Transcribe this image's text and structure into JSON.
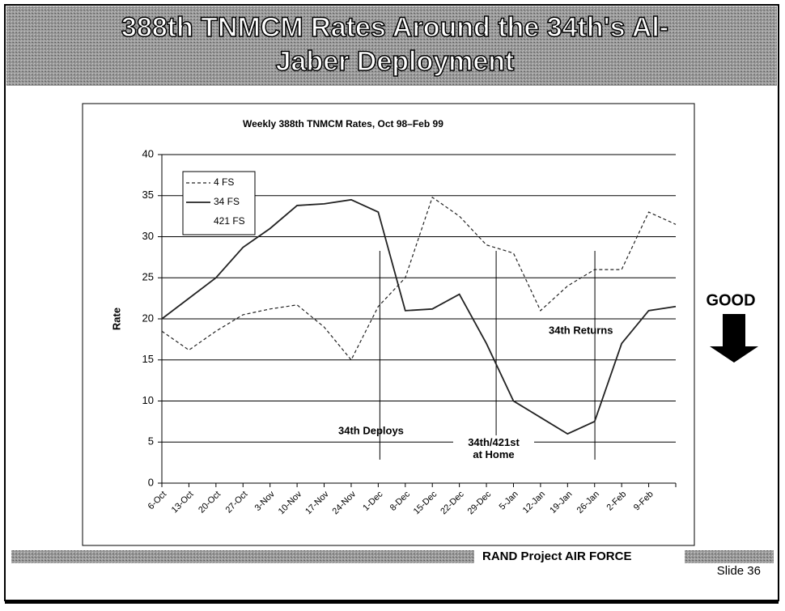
{
  "title": [
    "388th TNMCM Rates Around the 34th's Al-",
    "Jaber Deployment"
  ],
  "footer": "RAND Project AIR FORCE",
  "slide_number": "Slide 36",
  "chart_data": {
    "type": "line",
    "title": "Weekly 388th TNMCM Rates, Oct 98–Feb 99",
    "y_label": "Rate",
    "categories": [
      "6-Oct",
      "13-Oct",
      "20-Oct",
      "27-Oct",
      "3-Nov",
      "10-Nov",
      "17-Nov",
      "24-Nov",
      "1-Dec",
      "8-Dec",
      "15-Dec",
      "22-Dec",
      "29-Dec",
      "5-Jan",
      "12-Jan",
      "19-Jan",
      "26-Jan",
      "2-Feb",
      "9-Feb",
      null
    ],
    "series": [
      {
        "name": "4 FS",
        "color": "#222222",
        "style": "dashed",
        "values": [
          18.5,
          16.2,
          18.5,
          20.5,
          21.2,
          21.7,
          19,
          15,
          21.5,
          25,
          34.8,
          32.5,
          29,
          28,
          21,
          24,
          26,
          26,
          33,
          31.5
        ]
      },
      {
        "name": "34 FS",
        "color": "#222222",
        "style": "solid",
        "values": [
          20,
          22.5,
          25,
          28.7,
          31,
          33.8,
          34,
          34.5,
          33,
          21,
          21.2,
          23,
          17,
          10,
          8,
          6,
          7.5,
          17,
          21,
          21.5
        ]
      },
      {
        "name": "421 FS",
        "color": "#222222",
        "style": "solid",
        "values": [
          null,
          null,
          null,
          null,
          null,
          null,
          null,
          null,
          null,
          null,
          null,
          null,
          null,
          null,
          null,
          null,
          null,
          null,
          null,
          null
        ]
      }
    ],
    "ylim": [
      0,
      40
    ],
    "yticks": [
      0,
      5,
      10,
      15,
      20,
      25,
      30,
      35,
      40
    ],
    "grid": true,
    "legend": "upper left",
    "annotations": [
      "34th Deploys",
      "34th/421st\nat Home",
      "34th Returns"
    ],
    "side_note": "GOOD"
  }
}
